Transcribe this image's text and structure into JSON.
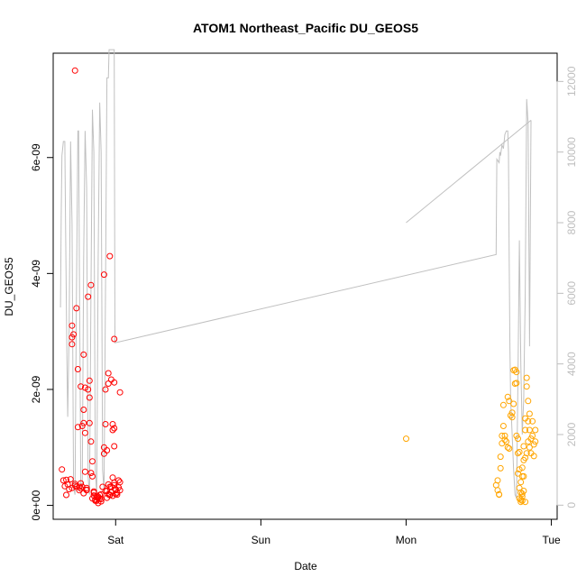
{
  "chart_data": {
    "type": "scatter",
    "title": "ATOM1 Northeast_Pacific DU_GEOS5",
    "xlabel": "Date",
    "ylabel": "DU_GEOS5",
    "x_ticks": [
      "Sat",
      "Sun",
      "Mon",
      "Tue"
    ],
    "x_tick_values_days": [
      1.0,
      2.0,
      3.0,
      4.0
    ],
    "xlim_days": [
      0.57,
      4.04
    ],
    "y_ticks": [
      "0e+00",
      "2e-09",
      "4e-09",
      "6e-09"
    ],
    "y_tick_values": [
      0,
      2e-09,
      4e-09,
      6e-09
    ],
    "ylim": [
      -2.4e-10,
      7.8e-09
    ],
    "y2_ticks": [
      "0",
      "2000",
      "4000",
      "6000",
      "8000",
      "10000",
      "12000"
    ],
    "y2_tick_values": [
      0,
      2000,
      4000,
      6000,
      8000,
      10000,
      12000
    ],
    "y2lim": [
      -400,
      12800
    ],
    "grid": false,
    "legend": "none",
    "colors": {
      "series_red": "#ff0000",
      "series_orange": "#ffa500",
      "altitude_line": "#c0c0c0",
      "axis": "#000000",
      "right_axis": "#bebebe"
    },
    "series": [
      {
        "marker": "open-circle",
        "color": "#ff0000",
        "points": [
          [
            0.63,
            6.2e-10
          ],
          [
            0.64,
            4.3e-10
          ],
          [
            0.65,
            3.3e-10
          ],
          [
            0.66,
            1.8e-10
          ],
          [
            0.66,
            4.4e-10
          ],
          [
            0.67,
            3.6e-10
          ],
          [
            0.68,
            2.8e-10
          ],
          [
            0.69,
            4.5e-10
          ],
          [
            0.7,
            3e-10
          ],
          [
            0.7,
            3.1e-09
          ],
          [
            0.7,
            2.9e-09
          ],
          [
            0.7,
            2.78e-09
          ],
          [
            0.71,
            2.95e-09
          ],
          [
            0.72,
            3.4e-10
          ],
          [
            0.72,
            7.5e-09
          ],
          [
            0.73,
            3.4e-09
          ],
          [
            0.73,
            3.2e-10
          ],
          [
            0.74,
            2.35e-09
          ],
          [
            0.74,
            1.35e-09
          ],
          [
            0.75,
            2.6e-10
          ],
          [
            0.75,
            3.2e-10
          ],
          [
            0.76,
            3.8e-10
          ],
          [
            0.76,
            2.05e-09
          ],
          [
            0.77,
            3.2e-10
          ],
          [
            0.77,
            1.37e-09
          ],
          [
            0.78,
            2.6e-09
          ],
          [
            0.78,
            1.42e-09
          ],
          [
            0.78,
            1.65e-09
          ],
          [
            0.78,
            2.1e-10
          ],
          [
            0.79,
            1.25e-09
          ],
          [
            0.79,
            2.03e-09
          ],
          [
            0.79,
            5.8e-10
          ],
          [
            0.8,
            2.7e-10
          ],
          [
            0.8,
            2.6e-10
          ],
          [
            0.81,
            3.6e-09
          ],
          [
            0.81,
            2e-09
          ],
          [
            0.82,
            2.15e-09
          ],
          [
            0.82,
            1.86e-09
          ],
          [
            0.82,
            1.42e-09
          ],
          [
            0.83,
            1.1e-09
          ],
          [
            0.83,
            3.8e-09
          ],
          [
            0.83,
            5.6e-10
          ],
          [
            0.84,
            7.6e-10
          ],
          [
            0.84,
            5e-10
          ],
          [
            0.84,
            1.2e-10
          ],
          [
            0.85,
            1.7e-10
          ],
          [
            0.85,
            2.2e-10
          ],
          [
            0.86,
            8e-11
          ],
          [
            0.86,
            1e-10
          ],
          [
            0.87,
            1.4e-10
          ],
          [
            0.87,
            8e-11
          ],
          [
            0.88,
            1.3e-10
          ],
          [
            0.88,
            4e-11
          ],
          [
            0.89,
            1.8e-10
          ],
          [
            0.89,
            1.2e-10
          ],
          [
            0.9,
            1.1e-10
          ],
          [
            0.9,
            7e-11
          ],
          [
            0.91,
            3.2e-10
          ],
          [
            0.92,
            1e-09
          ],
          [
            0.92,
            3.98e-09
          ],
          [
            0.92,
            8.9e-10
          ],
          [
            0.93,
            2e-09
          ],
          [
            0.93,
            2.5e-10
          ],
          [
            0.93,
            1.4e-09
          ],
          [
            0.94,
            2.5e-10
          ],
          [
            0.94,
            9.5e-10
          ],
          [
            0.95,
            1.9e-10
          ],
          [
            0.95,
            2.28e-09
          ],
          [
            0.95,
            2.1e-09
          ],
          [
            0.96,
            4.3e-09
          ],
          [
            0.96,
            3.2e-10
          ],
          [
            0.96,
            1.85e-10
          ],
          [
            0.97,
            3.2e-10
          ],
          [
            0.97,
            2.25e-10
          ],
          [
            0.97,
            2.17e-09
          ],
          [
            0.98,
            1.65e-10
          ],
          [
            0.98,
            1.3e-09
          ],
          [
            0.98,
            1.4e-09
          ],
          [
            0.99,
            2.12e-09
          ],
          [
            0.99,
            1.33e-09
          ],
          [
            0.99,
            2.87e-09
          ],
          [
            0.99,
            1.02e-09
          ],
          [
            0.99,
            3.5e-10
          ],
          [
            1.0,
            2.8e-10
          ],
          [
            1.0,
            2.6e-10
          ],
          [
            1.0,
            1.95e-10
          ],
          [
            1.01,
            2.2e-10
          ],
          [
            1.01,
            1.85e-10
          ],
          [
            1.02,
            3.1e-10
          ],
          [
            1.02,
            4.3e-10
          ],
          [
            1.03,
            2.6e-10
          ],
          [
            1.03,
            1.95e-09
          ],
          [
            1.03,
            4e-10
          ],
          [
            0.96,
            1.75e-10
          ],
          [
            0.88,
            1.5e-10
          ],
          [
            0.85,
            2.4e-10
          ],
          [
            0.9,
            1.9e-10
          ],
          [
            0.94,
            1.3e-10
          ],
          [
            0.72,
            3.7e-10
          ],
          [
            0.76,
            2.9e-10
          ],
          [
            0.8,
            3e-10
          ],
          [
            0.98,
            4.8e-10
          ],
          [
            0.99,
            3.9e-10
          ],
          [
            0.95,
            3.6e-10
          ]
        ]
      },
      {
        "marker": "open-circle",
        "color": "#ffa500",
        "points": [
          [
            3.0,
            1.15e-09
          ],
          [
            3.62,
            3.5e-10
          ],
          [
            3.63,
            4.3e-10
          ],
          [
            3.63,
            2.6e-10
          ],
          [
            3.64,
            1.9e-10
          ],
          [
            3.64,
            1.85e-10
          ],
          [
            3.65,
            8.4e-10
          ],
          [
            3.65,
            6.4e-10
          ],
          [
            3.66,
            1.07e-09
          ],
          [
            3.66,
            1.2e-09
          ],
          [
            3.67,
            1.37e-09
          ],
          [
            3.67,
            1.73e-09
          ],
          [
            3.68,
            1.13e-09
          ],
          [
            3.68,
            1.2e-09
          ],
          [
            3.69,
            1.1e-09
          ],
          [
            3.7,
            1.87e-09
          ],
          [
            3.7,
            1e-09
          ],
          [
            3.71,
            1.8e-09
          ],
          [
            3.71,
            9.8e-10
          ],
          [
            3.72,
            1.55e-09
          ],
          [
            3.73,
            1.6e-09
          ],
          [
            3.73,
            1.52e-09
          ],
          [
            3.74,
            2.33e-09
          ],
          [
            3.74,
            1.75e-09
          ],
          [
            3.75,
            2.34e-09
          ],
          [
            3.75,
            2.1e-09
          ],
          [
            3.76,
            2.3e-09
          ],
          [
            3.76,
            2.11e-09
          ],
          [
            3.76,
            1.2e-09
          ],
          [
            3.77,
            1.15e-09
          ],
          [
            3.77,
            9e-10
          ],
          [
            3.78,
            9.2e-10
          ],
          [
            3.78,
            6.2e-10
          ],
          [
            3.78,
            3e-10
          ],
          [
            3.79,
            1e-10
          ],
          [
            3.79,
            2.2e-10
          ],
          [
            3.79,
            6e-11
          ],
          [
            3.8,
            8e-11
          ],
          [
            3.8,
            1.5e-10
          ],
          [
            3.8,
            5e-10
          ],
          [
            3.8,
            6.5e-10
          ],
          [
            3.81,
            5e-10
          ],
          [
            3.81,
            1.02e-09
          ],
          [
            3.81,
            7.8e-10
          ],
          [
            3.82,
            1.5e-09
          ],
          [
            3.82,
            8.2e-10
          ],
          [
            3.82,
            6e-11
          ],
          [
            3.83,
            2.05e-09
          ],
          [
            3.83,
            2.2e-09
          ],
          [
            3.83,
            9e-10
          ],
          [
            3.84,
            1.1e-09
          ],
          [
            3.84,
            1.45e-09
          ],
          [
            3.85,
            1.3e-09
          ],
          [
            3.85,
            1.58e-09
          ],
          [
            3.85,
            1e-09
          ],
          [
            3.86,
            9e-10
          ],
          [
            3.86,
            1.15e-09
          ],
          [
            3.87,
            1.45e-09
          ],
          [
            3.87,
            1.2e-09
          ],
          [
            3.88,
            1.05e-09
          ],
          [
            3.88,
            8.5e-10
          ],
          [
            3.89,
            1.3e-09
          ],
          [
            3.89,
            1.1e-09
          ],
          [
            3.79,
            4e-10
          ],
          [
            3.8,
            2e-10
          ],
          [
            3.81,
            2.5e-10
          ],
          [
            3.78,
            1.2e-10
          ],
          [
            3.77,
            5.5e-10
          ],
          [
            3.82,
            1.3e-09
          ],
          [
            3.84,
            1.8e-09
          ]
        ]
      }
    ],
    "altitude_line": {
      "axis": "right",
      "color": "#c0c0c0",
      "points": [
        [
          0.62,
          5600
        ],
        [
          0.625,
          8200
        ],
        [
          0.63,
          9900
        ],
        [
          0.64,
          10300
        ],
        [
          0.65,
          10300
        ],
        [
          0.655,
          8000
        ],
        [
          0.665,
          4000
        ],
        [
          0.67,
          2500
        ],
        [
          0.68,
          5000
        ],
        [
          0.69,
          10300
        ],
        [
          0.7,
          8000
        ],
        [
          0.71,
          500
        ],
        [
          0.72,
          300
        ],
        [
          0.73,
          6000
        ],
        [
          0.74,
          10600
        ],
        [
          0.745,
          10600
        ],
        [
          0.75,
          7000
        ],
        [
          0.76,
          600
        ],
        [
          0.77,
          400
        ],
        [
          0.78,
          7000
        ],
        [
          0.79,
          10600
        ],
        [
          0.8,
          9000
        ],
        [
          0.81,
          800
        ],
        [
          0.82,
          300
        ],
        [
          0.83,
          6000
        ],
        [
          0.84,
          11200
        ],
        [
          0.85,
          10000
        ],
        [
          0.86,
          1000
        ],
        [
          0.87,
          300
        ],
        [
          0.88,
          7000
        ],
        [
          0.89,
          11400
        ],
        [
          0.9,
          10000
        ],
        [
          0.91,
          1000
        ],
        [
          0.92,
          400
        ],
        [
          0.93,
          6000
        ],
        [
          0.94,
          12100
        ],
        [
          0.95,
          12100
        ],
        [
          0.955,
          12900
        ],
        [
          0.99,
          12900
        ],
        [
          0.995,
          4600
        ],
        [
          3.62,
          7100
        ],
        [
          3.625,
          9800
        ],
        [
          3.64,
          9700
        ],
        [
          3.645,
          10000
        ],
        [
          3.65,
          9900
        ],
        [
          3.66,
          10200
        ],
        [
          3.67,
          10100
        ],
        [
          3.68,
          10500
        ],
        [
          3.69,
          10600
        ],
        [
          3.7,
          10600
        ],
        [
          3.705,
          10000
        ],
        [
          3.71,
          7000
        ],
        [
          3.715,
          4500
        ],
        [
          3.72,
          3000
        ],
        [
          3.73,
          2000
        ],
        [
          3.74,
          1000
        ],
        [
          3.75,
          300
        ],
        [
          3.76,
          200
        ],
        [
          3.77,
          3500
        ],
        [
          3.78,
          7500
        ],
        [
          3.79,
          4000
        ],
        [
          3.8,
          2000
        ],
        [
          3.81,
          3000
        ],
        [
          3.82,
          6000
        ],
        [
          3.83,
          11500
        ],
        [
          3.84,
          10800
        ],
        [
          3.85,
          4500
        ],
        [
          3.86,
          10900
        ]
      ],
      "segment": [
        [
          3.0,
          8000
        ],
        [
          3.86,
          10900
        ]
      ]
    }
  }
}
